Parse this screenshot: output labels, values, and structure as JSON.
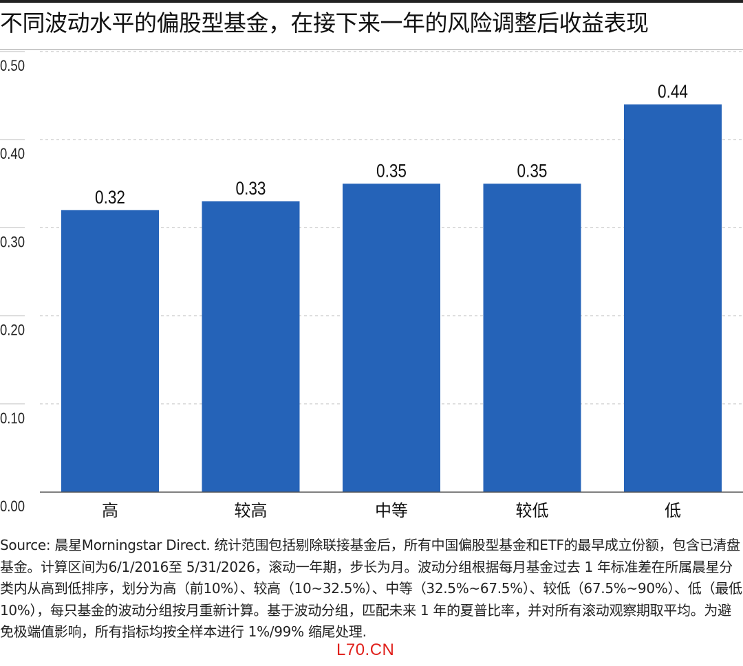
{
  "title": "不同波动水平的偏股型基金，在接下来一年的风险调整后收益表现",
  "source_note": "Source: 晨星Morningstar Direct. 统计范围包括剔除联接基金后，所有中国偏股型基金和ETF的最早成立份额，包含已清盘基金。计算区间为6/1/2016至 5/31/2026，滚动一年期，步长为月。波动分组根据每月基金过去 1 年标准差在所属晨星分类内从高到低排序，划分为高（前10%）、较高（10~32.5%）、中等（32.5%~67.5%）、较低（67.5%~90%）、低（最低10%），每只基金的波动分组按月重新计算。基于波动分组，匹配未来 1 年的夏普比率，并对所有滚动观察期取平均。为避免极端值影响，所有指标均按全样本进行 1%/99% 缩尾处理.",
  "watermark": "L70.CN",
  "colors": {
    "bar": "#2563b8",
    "grid": "#bbbbbb",
    "axis": "#555555"
  },
  "chart_data": {
    "type": "bar",
    "title": "不同波动水平的偏股型基金，在接下来一年的风险调整后收益表现",
    "xlabel": "",
    "ylabel": "",
    "categories": [
      "高",
      "较高",
      "中等",
      "较低",
      "低"
    ],
    "values": [
      0.32,
      0.33,
      0.35,
      0.35,
      0.44
    ],
    "data_labels": [
      "0.32",
      "0.33",
      "0.35",
      "0.35",
      "0.44"
    ],
    "ylim": [
      0,
      0.5
    ],
    "yticks": [
      0.0,
      0.1,
      0.2,
      0.3,
      0.4,
      0.5
    ],
    "ytick_labels": [
      "0.00",
      "0.10",
      "0.20",
      "0.30",
      "0.40",
      "0.50"
    ],
    "grid": true,
    "legend": "none"
  }
}
